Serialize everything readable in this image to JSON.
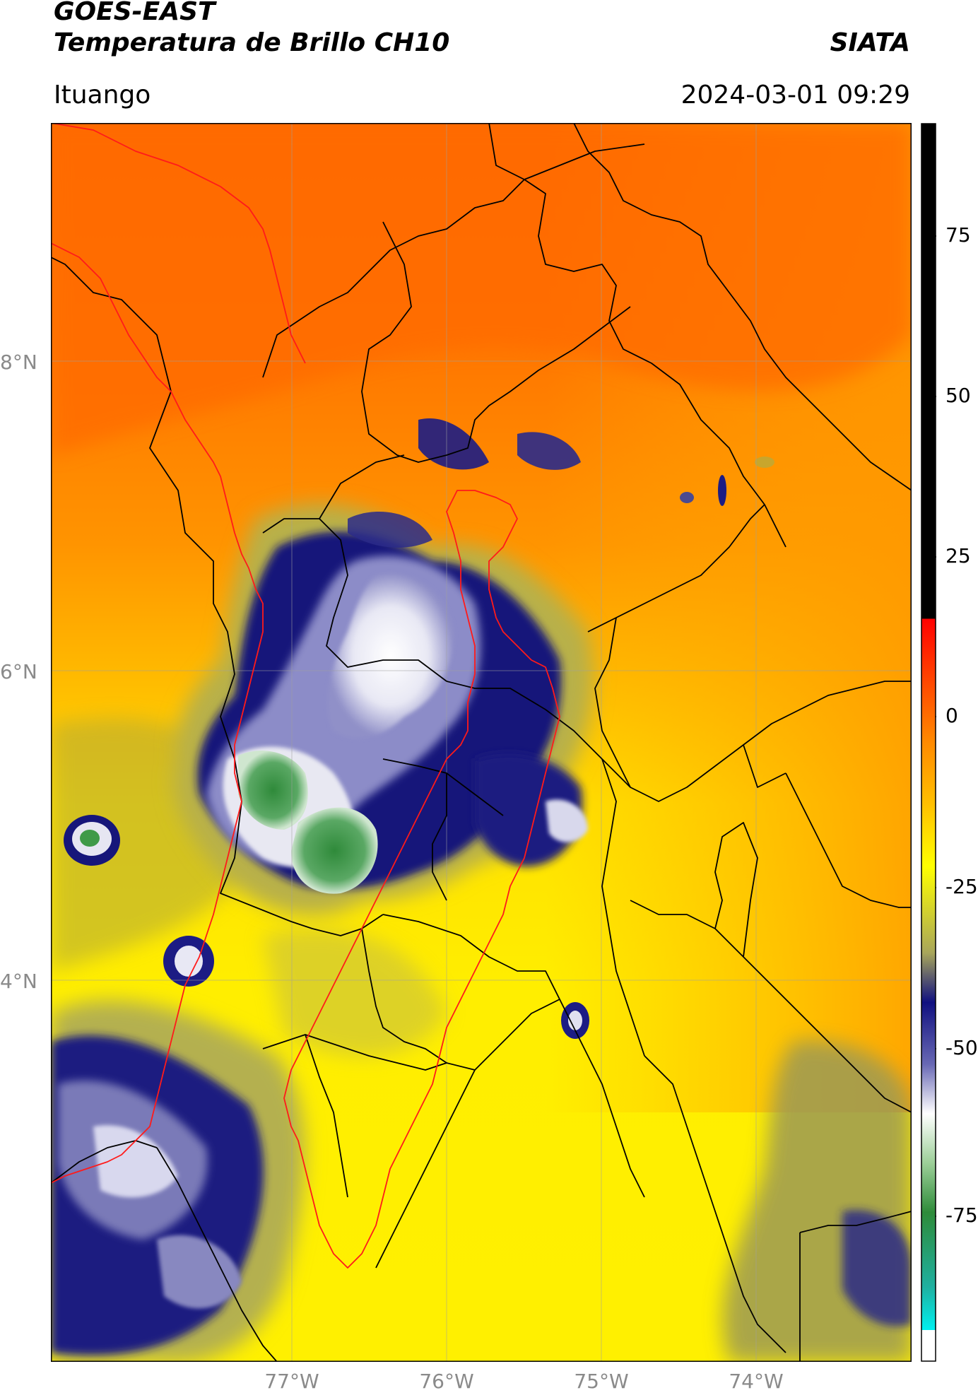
{
  "header": {
    "title_line1": "GOES-EAST",
    "title_line2": "Temperatura de Brillo CH10",
    "source": "SIATA",
    "region": "Ituango",
    "datetime": "2024-03-01 09:29"
  },
  "axes": {
    "latitude_labels": [
      "8°N",
      "6°N",
      "4°N"
    ],
    "longitude_labels": [
      "77°W",
      "76°W",
      "75°W",
      "74°W"
    ]
  },
  "colorbar": {
    "tick_labels": [
      "75",
      "50",
      "25",
      "0",
      "-25",
      "-50",
      "-75"
    ],
    "range": [
      -95,
      90
    ],
    "colors": {
      "warm": "#ff6600",
      "orange": "#ff9900",
      "yellow": "#ffff00",
      "olive": "#a3a34a",
      "navy": "#11117a",
      "white": "#ffffff",
      "green": "#2e8b3a",
      "cyan": "#00e5e5",
      "red": "#ff0000",
      "black": "#000000"
    }
  }
}
